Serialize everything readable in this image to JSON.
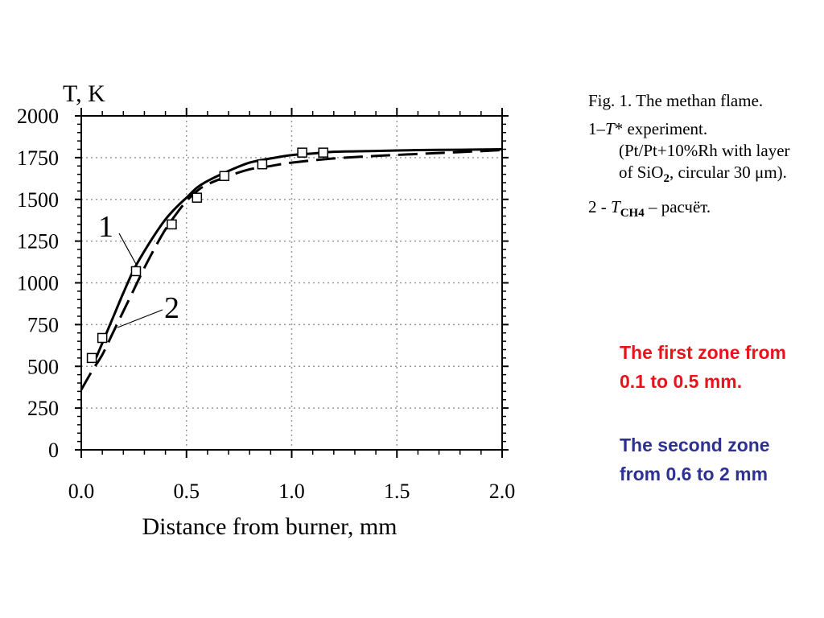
{
  "chart_data": {
    "type": "line",
    "title": "",
    "ylabel": "T, K",
    "xlabel": "Distance from burner, mm",
    "xlim": [
      0.0,
      2.0
    ],
    "ylim": [
      0,
      2000
    ],
    "x_ticks": [
      "0.0",
      "0.5",
      "1.0",
      "1.5",
      "2.0"
    ],
    "y_ticks": [
      "0",
      "250",
      "500",
      "750",
      "1000",
      "1250",
      "1500",
      "1750",
      "2000"
    ],
    "grid": true,
    "series": [
      {
        "name": "1",
        "style": "solid",
        "x": [
          0.07,
          0.1,
          0.15,
          0.2,
          0.25,
          0.3,
          0.35,
          0.4,
          0.45,
          0.5,
          0.55,
          0.6,
          0.7,
          0.8,
          0.9,
          1.0,
          1.1,
          1.2,
          1.4,
          1.6,
          1.8,
          2.0
        ],
        "y": [
          550,
          640,
          790,
          940,
          1080,
          1190,
          1290,
          1380,
          1450,
          1510,
          1570,
          1610,
          1670,
          1720,
          1745,
          1765,
          1775,
          1785,
          1790,
          1795,
          1797,
          1800
        ]
      },
      {
        "name": "2",
        "style": "dashed",
        "x": [
          0.0,
          0.05,
          0.1,
          0.15,
          0.2,
          0.25,
          0.3,
          0.35,
          0.4,
          0.45,
          0.5,
          0.55,
          0.6,
          0.7,
          0.8,
          0.9,
          1.0,
          1.2,
          1.4,
          1.6,
          1.8,
          2.0
        ],
        "y": [
          360,
          470,
          570,
          700,
          830,
          960,
          1090,
          1210,
          1320,
          1410,
          1490,
          1550,
          1590,
          1640,
          1680,
          1700,
          1720,
          1745,
          1760,
          1772,
          1783,
          1795
        ]
      },
      {
        "name": "experiment",
        "style": "markers",
        "x": [
          0.05,
          0.1,
          0.26,
          0.43,
          0.55,
          0.68,
          0.86,
          1.05,
          1.15
        ],
        "y": [
          550,
          670,
          1070,
          1350,
          1510,
          1640,
          1710,
          1780,
          1780
        ]
      }
    ]
  },
  "caption": {
    "fig": "Fig. 1. The methan flame.",
    "item1_prefix": "1–",
    "item1_var": "T",
    "item1_text_a": "* experiment. (Pt/Pt+10%Rh with layer of SiO",
    "item1_sub": "2",
    "item1_text_b": ", circular 30 μm).",
    "item2_prefix": "2 - ",
    "item2_var": "T",
    "item2_sub": "CH4",
    "item2_text": " – расчёт."
  },
  "zones": {
    "first": "The first zone from 0.1 to 0.5 mm.",
    "second": "The second zone from 0.6 to 2 mm",
    "first_color": "#e8141c",
    "second_color": "#2e3092"
  }
}
